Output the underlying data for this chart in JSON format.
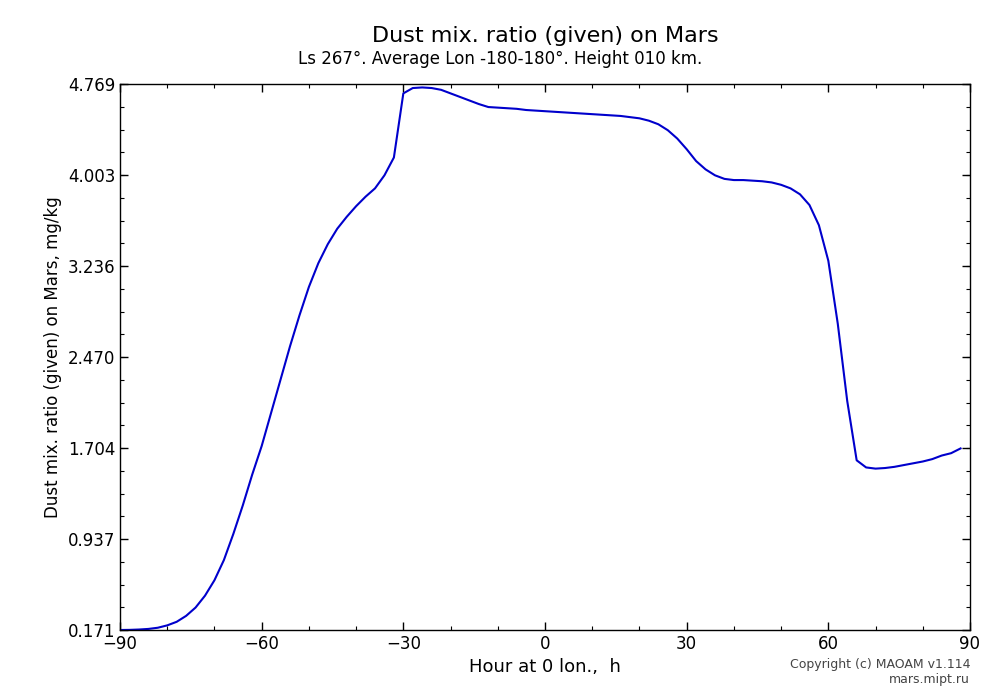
{
  "title": "Dust mix. ratio (given) on Mars",
  "subtitle": "Ls 267°. Average Lon -180-180°. Height 010 km.",
  "xlabel": "Hour at 0 lon.,  h",
  "ylabel": "Dust mix. ratio (given) on Mars, mg/kg",
  "copyright": "Copyright (c) MAOAM v1.114\nmars.mipt.ru",
  "xlim": [
    -90,
    90
  ],
  "ylim": [
    0.171,
    4.769
  ],
  "yticks": [
    0.171,
    0.937,
    1.704,
    2.47,
    3.236,
    4.003,
    4.769
  ],
  "ytick_labels": [
    "0.171",
    "0.937",
    "1.704",
    "2.470",
    "3.236",
    "4.003",
    "4.769"
  ],
  "xticks": [
    -90,
    -60,
    -30,
    0,
    30,
    60,
    90
  ],
  "line_color": "#0000cc",
  "line_width": 1.5,
  "bg_color": "#ffffff",
  "x": [
    -90,
    -88,
    -86,
    -84,
    -82,
    -80,
    -78,
    -76,
    -74,
    -72,
    -70,
    -68,
    -66,
    -64,
    -62,
    -60,
    -58,
    -56,
    -54,
    -52,
    -50,
    -48,
    -46,
    -44,
    -42,
    -40,
    -38,
    -36,
    -34,
    -32,
    -30,
    -28,
    -26,
    -24,
    -22,
    -20,
    -18,
    -16,
    -14,
    -12,
    -10,
    -8,
    -6,
    -4,
    -2,
    0,
    2,
    4,
    6,
    8,
    10,
    12,
    14,
    16,
    18,
    20,
    22,
    24,
    26,
    28,
    30,
    32,
    34,
    36,
    38,
    40,
    42,
    44,
    46,
    48,
    50,
    52,
    54,
    56,
    58,
    60,
    62,
    64,
    66,
    68,
    70,
    72,
    74,
    76,
    78,
    80,
    82,
    84,
    86,
    88
  ],
  "y": [
    0.171,
    0.172,
    0.175,
    0.18,
    0.19,
    0.21,
    0.24,
    0.29,
    0.36,
    0.46,
    0.59,
    0.76,
    0.98,
    1.22,
    1.48,
    1.72,
    2.0,
    2.28,
    2.56,
    2.82,
    3.06,
    3.26,
    3.42,
    3.55,
    3.65,
    3.74,
    3.82,
    3.89,
    4.0,
    4.15,
    4.69,
    4.735,
    4.74,
    4.735,
    4.72,
    4.69,
    4.66,
    4.63,
    4.6,
    4.575,
    4.57,
    4.565,
    4.56,
    4.55,
    4.545,
    4.54,
    4.535,
    4.53,
    4.525,
    4.52,
    4.515,
    4.51,
    4.505,
    4.5,
    4.49,
    4.48,
    4.46,
    4.43,
    4.38,
    4.31,
    4.22,
    4.12,
    4.05,
    4.0,
    3.97,
    3.96,
    3.96,
    3.955,
    3.95,
    3.94,
    3.92,
    3.89,
    3.84,
    3.75,
    3.58,
    3.28,
    2.75,
    2.1,
    1.6,
    1.54,
    1.53,
    1.535,
    1.545,
    1.56,
    1.575,
    1.59,
    1.61,
    1.64,
    1.66,
    1.7
  ]
}
